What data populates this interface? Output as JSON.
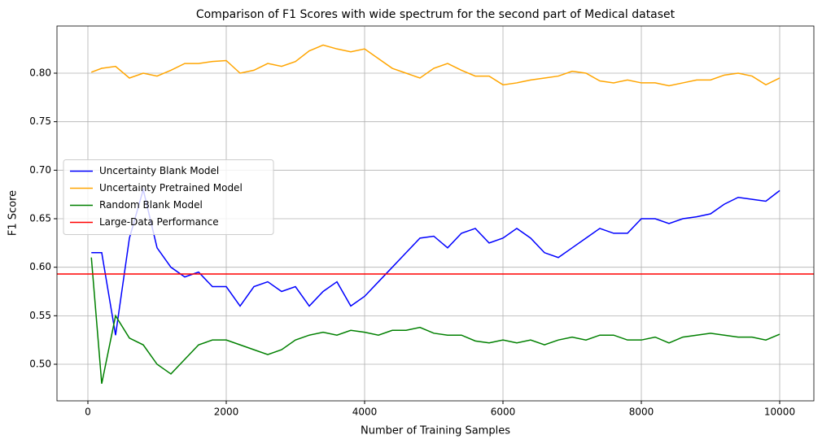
{
  "chart_data": {
    "type": "line",
    "title": "Comparison of F1 Scores with wide spectrum for the second part of Medical dataset",
    "xlabel": "Number of Training Samples",
    "ylabel": "F1 Score",
    "x": [
      50,
      200,
      400,
      600,
      800,
      1000,
      1200,
      1400,
      1600,
      1800,
      2000,
      2200,
      2400,
      2600,
      2800,
      3000,
      3200,
      3400,
      3600,
      3800,
      4000,
      4200,
      4400,
      4600,
      4800,
      5000,
      5200,
      5400,
      5600,
      5800,
      6000,
      6200,
      6400,
      6600,
      6800,
      7000,
      7200,
      7400,
      7600,
      7800,
      8000,
      8200,
      8400,
      8600,
      8800,
      9000,
      9200,
      9400,
      9600,
      9800,
      10000
    ],
    "series": [
      {
        "name": "Uncertainty Blank Model",
        "color": "#0000ff",
        "values": [
          0.615,
          0.615,
          0.53,
          0.63,
          0.68,
          0.62,
          0.6,
          0.59,
          0.595,
          0.58,
          0.58,
          0.56,
          0.58,
          0.585,
          0.575,
          0.58,
          0.56,
          0.575,
          0.585,
          0.56,
          0.57,
          0.585,
          0.6,
          0.615,
          0.63,
          0.632,
          0.62,
          0.635,
          0.64,
          0.625,
          0.63,
          0.64,
          0.63,
          0.615,
          0.61,
          0.62,
          0.63,
          0.64,
          0.635,
          0.635,
          0.65,
          0.65,
          0.645,
          0.65,
          0.652,
          0.655,
          0.665,
          0.672,
          0.67,
          0.668,
          0.679
        ]
      },
      {
        "name": "Uncertainty Pretrained Model",
        "color": "#ffa500",
        "values": [
          0.801,
          0.805,
          0.807,
          0.795,
          0.8,
          0.797,
          0.803,
          0.81,
          0.81,
          0.812,
          0.813,
          0.8,
          0.803,
          0.81,
          0.807,
          0.812,
          0.823,
          0.829,
          0.825,
          0.822,
          0.825,
          0.815,
          0.805,
          0.8,
          0.795,
          0.805,
          0.81,
          0.803,
          0.797,
          0.797,
          0.788,
          0.79,
          0.793,
          0.795,
          0.797,
          0.802,
          0.8,
          0.792,
          0.79,
          0.793,
          0.79,
          0.79,
          0.787,
          0.79,
          0.793,
          0.793,
          0.798,
          0.8,
          0.797,
          0.788,
          0.795
        ]
      },
      {
        "name": "Random Blank Model",
        "color": "#008000",
        "values": [
          0.61,
          0.48,
          0.55,
          0.527,
          0.52,
          0.5,
          0.49,
          0.505,
          0.52,
          0.525,
          0.525,
          0.52,
          0.515,
          0.51,
          0.515,
          0.525,
          0.53,
          0.533,
          0.53,
          0.535,
          0.533,
          0.53,
          0.535,
          0.535,
          0.538,
          0.532,
          0.53,
          0.53,
          0.524,
          0.522,
          0.525,
          0.522,
          0.525,
          0.52,
          0.525,
          0.528,
          0.525,
          0.53,
          0.53,
          0.525,
          0.525,
          0.528,
          0.522,
          0.528,
          0.53,
          0.532,
          0.53,
          0.528,
          0.528,
          0.525,
          0.531
        ]
      }
    ],
    "reference_lines": [
      {
        "name": "Large-Data Performance",
        "color": "#ff0000",
        "y": 0.593
      }
    ],
    "xlim": [
      -447,
      10494
    ],
    "ylim": [
      0.4623,
      0.8486
    ],
    "xticks": [
      0,
      2000,
      4000,
      6000,
      8000,
      10000
    ],
    "yticks": [
      {
        "value": 0.5,
        "label": "0.50"
      },
      0.55,
      {
        "value": 0.6,
        "label": "0.60"
      },
      0.65,
      {
        "value": 0.7,
        "label": "0.70"
      },
      0.75,
      {
        "value": 0.8,
        "label": "0.80"
      }
    ],
    "grid": true,
    "legend": "center left"
  }
}
